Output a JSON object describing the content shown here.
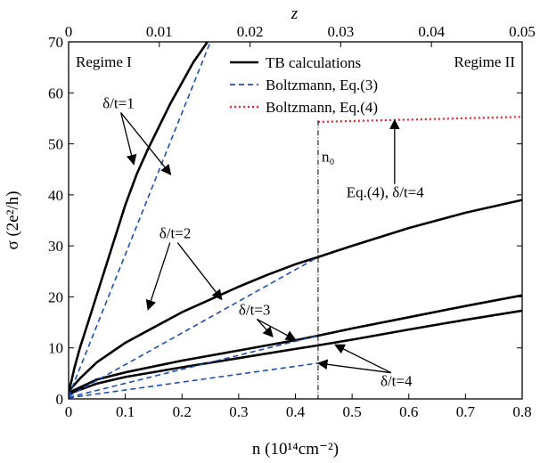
{
  "chart_data": {
    "type": "line",
    "xlabel_bottom": "n (10¹⁴cm⁻²)",
    "xlabel_top": "z",
    "ylabel": "σ (2e²/h)",
    "xlim": [
      0,
      0.8
    ],
    "ylim": [
      0,
      70
    ],
    "xlim_top": [
      0,
      0.05
    ],
    "x_ticks": [
      "0",
      "0.1",
      "0.2",
      "0.3",
      "0.4",
      "0.5",
      "0.6",
      "0.7",
      "0.8"
    ],
    "x_tick_values": [
      0,
      0.1,
      0.2,
      0.3,
      0.4,
      0.5,
      0.6,
      0.7,
      0.8
    ],
    "y_ticks": [
      "0",
      "10",
      "20",
      "30",
      "40",
      "50",
      "60",
      "70"
    ],
    "y_tick_values": [
      0,
      10,
      20,
      30,
      40,
      50,
      60,
      70
    ],
    "top_ticks": [
      "0",
      "0.01",
      "0.02",
      "0.03",
      "0.04",
      "0.05"
    ],
    "top_tick_values": [
      0,
      0.01,
      0.02,
      0.03,
      0.04,
      0.05
    ],
    "grid": false,
    "legend_position": "top-right",
    "legend": [
      {
        "label": "TB calculations",
        "color": "#000000",
        "style": "solid"
      },
      {
        "label": "Boltzmann, Eq.(3)",
        "color": "#1f4fa8",
        "style": "dashed"
      },
      {
        "label": "Boltzmann, Eq.(4)",
        "color": "#e8202a",
        "style": "dotted"
      }
    ],
    "regime_labels": [
      "Regime I",
      "Regime II"
    ],
    "vertical_marker": {
      "x": 0.44,
      "label": "n₀"
    },
    "series": [
      {
        "kind": "TB",
        "color": "#000000",
        "style": "solid",
        "x": [
          0,
          0.005,
          0.01,
          0.02,
          0.04,
          0.06,
          0.08,
          0.1,
          0.12,
          0.14,
          0.16,
          0.18,
          0.2,
          0.22,
          0.245
        ],
        "y": [
          1.5,
          3.5,
          6,
          10,
          17,
          24,
          31,
          38,
          44,
          49,
          53.5,
          58,
          62,
          66,
          70
        ]
      },
      {
        "kind": "TB",
        "color": "#000000",
        "style": "solid",
        "x": [
          0,
          0.02,
          0.05,
          0.1,
          0.15,
          0.2,
          0.25,
          0.3,
          0.35,
          0.4,
          0.44,
          0.5,
          0.6,
          0.7,
          0.8
        ],
        "y": [
          1.5,
          4,
          7.2,
          11,
          14,
          17,
          19.5,
          22,
          24.3,
          26.4,
          27.8,
          30,
          33.5,
          36.5,
          39
        ]
      },
      {
        "kind": "TB",
        "color": "#000000",
        "style": "solid",
        "x": [
          0,
          0.05,
          0.1,
          0.2,
          0.3,
          0.4,
          0.44,
          0.5,
          0.6,
          0.7,
          0.8
        ],
        "y": [
          1.2,
          3.8,
          5.2,
          7.5,
          9.5,
          11.5,
          12.4,
          13.8,
          16,
          18.2,
          20.3
        ]
      },
      {
        "kind": "TB",
        "color": "#000000",
        "style": "solid",
        "x": [
          0,
          0.05,
          0.1,
          0.2,
          0.3,
          0.4,
          0.44,
          0.5,
          0.6,
          0.7,
          0.8
        ],
        "y": [
          1.0,
          3.0,
          4.3,
          6.2,
          8.0,
          9.8,
          10.5,
          11.6,
          13.6,
          15.5,
          17.3
        ]
      },
      {
        "kind": "Eq3",
        "color": "#1f4fa8",
        "style": "dashed",
        "x": [
          0,
          0.25
        ],
        "y": [
          0.5,
          70
        ]
      },
      {
        "kind": "Eq3",
        "color": "#1f4fa8",
        "style": "dashed",
        "x": [
          0,
          0.44
        ],
        "y": [
          0.5,
          27.8
        ]
      },
      {
        "kind": "Eq3",
        "color": "#1f4fa8",
        "style": "dashed",
        "x": [
          0,
          0.44
        ],
        "y": [
          0.3,
          12.4
        ]
      },
      {
        "kind": "Eq3",
        "color": "#1f4fa8",
        "style": "dashed",
        "x": [
          0,
          0.44
        ],
        "y": [
          0.2,
          7.0
        ]
      },
      {
        "kind": "Eq4",
        "color": "#e8202a",
        "style": "dotted",
        "x": [
          0.44,
          0.8
        ],
        "y": [
          54.3,
          55.3
        ]
      }
    ],
    "annotations": [
      {
        "text": "δ/t=1",
        "x": 0.06,
        "y": 57,
        "arrows_to": [
          [
            0.115,
            46
          ],
          [
            0.18,
            44
          ]
        ]
      },
      {
        "text": "δ/t=2",
        "x": 0.16,
        "y": 31.5,
        "arrows_to": [
          [
            0.14,
            17.5
          ],
          [
            0.27,
            19.5
          ]
        ]
      },
      {
        "text": "δ/t=3",
        "x": 0.3,
        "y": 16.5,
        "arrows_to": [
          [
            0.36,
            12.2
          ],
          [
            0.4,
            11.6
          ]
        ]
      },
      {
        "text": "δ/t=4",
        "x": 0.55,
        "y": 2.5,
        "arrows_to": [
          [
            0.44,
            7.0
          ],
          [
            0.47,
            10.6
          ]
        ]
      },
      {
        "text": "Eq.(4),  δ/t=4",
        "x": 0.49,
        "y": 39.5,
        "arrows_to": [
          [
            0.575,
            54.7
          ]
        ]
      }
    ]
  }
}
